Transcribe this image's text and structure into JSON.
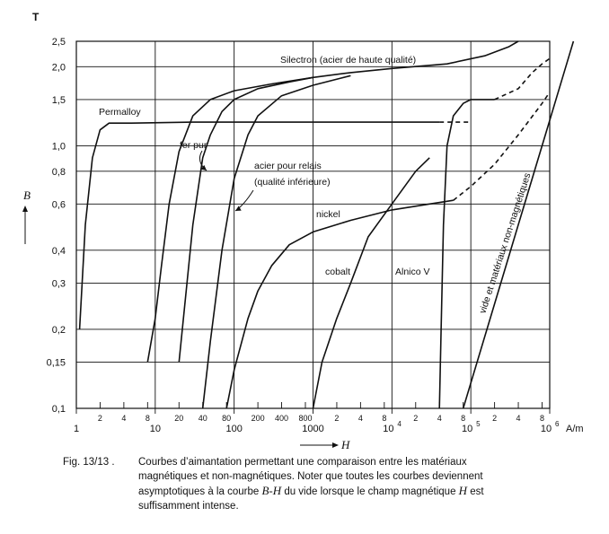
{
  "chart_data": {
    "type": "line",
    "title": "",
    "xlabel": "H",
    "x_unit": "A/m",
    "ylabel": "B",
    "y_unit": "T",
    "x_scale": "log",
    "y_scale": "log",
    "xlim": [
      1,
      1000000
    ],
    "ylim": [
      0.1,
      2.5
    ],
    "grid": true,
    "y_ticks": [
      0.1,
      0.15,
      0.2,
      0.3,
      0.4,
      0.6,
      0.8,
      1.0,
      1.5,
      2.0,
      2.5
    ],
    "y_tick_labels": [
      "0,1",
      "0,15",
      "0,2",
      "0,3",
      "0,4",
      "0,6",
      "0,8",
      "1,0",
      "1,5",
      "2,0",
      "2,5"
    ],
    "x_major_ticks": [
      1,
      10,
      100,
      1000,
      10000,
      100000,
      1000000
    ],
    "x_major_labels": [
      "1",
      "10",
      "100",
      "1000",
      "10",
      "10",
      "10"
    ],
    "x_major_exponents": [
      "",
      "",
      "",
      "",
      "4",
      "5",
      "6"
    ],
    "x_minor_ticks": [
      2,
      4,
      8,
      20,
      40,
      80,
      200,
      400,
      800,
      2000,
      4000,
      8000,
      20000,
      40000,
      80000,
      200000,
      400000,
      800000
    ],
    "x_minor_labels": [
      "2",
      "4",
      "8",
      "20",
      "40",
      "80",
      "200",
      "400",
      "800",
      "2",
      "4",
      "8",
      "2",
      "4",
      "8",
      "2",
      "4",
      "8"
    ],
    "series": [
      {
        "name": "Permalloy",
        "points": [
          [
            1.1,
            0.2
          ],
          [
            1.3,
            0.5
          ],
          [
            1.6,
            0.9
          ],
          [
            2.0,
            1.15
          ],
          [
            2.6,
            1.22
          ],
          [
            5,
            1.22
          ],
          [
            30,
            1.23
          ],
          [
            200,
            1.23
          ],
          [
            5000,
            1.23
          ],
          [
            40000,
            1.23
          ]
        ]
      },
      {
        "name": "Permalloy (tirets)",
        "dashed": true,
        "points": [
          [
            40000,
            1.23
          ],
          [
            100000,
            1.23
          ]
        ]
      },
      {
        "name": "fer pur",
        "points": [
          [
            8,
            0.15
          ],
          [
            10,
            0.22
          ],
          [
            12,
            0.35
          ],
          [
            15,
            0.6
          ],
          [
            20,
            0.95
          ],
          [
            30,
            1.3
          ],
          [
            50,
            1.5
          ],
          [
            100,
            1.62
          ],
          [
            300,
            1.72
          ],
          [
            1000,
            1.82
          ]
        ]
      },
      {
        "name": "Silectron (acier de haute qualité)",
        "points": [
          [
            20,
            0.15
          ],
          [
            30,
            0.5
          ],
          [
            40,
            0.9
          ],
          [
            50,
            1.1
          ],
          [
            70,
            1.35
          ],
          [
            100,
            1.5
          ],
          [
            200,
            1.65
          ],
          [
            500,
            1.75
          ],
          [
            1000,
            1.82
          ],
          [
            3000,
            1.9
          ],
          [
            10000,
            1.97
          ],
          [
            50000,
            2.05
          ],
          [
            150000,
            2.2
          ],
          [
            300000,
            2.38
          ],
          [
            400000,
            2.5
          ]
        ]
      },
      {
        "name": "acier pour relais (qualité inférieure)",
        "points": [
          [
            40,
            0.1
          ],
          [
            50,
            0.18
          ],
          [
            70,
            0.4
          ],
          [
            100,
            0.75
          ],
          [
            150,
            1.1
          ],
          [
            200,
            1.3
          ],
          [
            400,
            1.55
          ],
          [
            1000,
            1.7
          ],
          [
            3000,
            1.85
          ]
        ]
      },
      {
        "name": "nickel",
        "points": [
          [
            80,
            0.1
          ],
          [
            100,
            0.14
          ],
          [
            150,
            0.22
          ],
          [
            200,
            0.28
          ],
          [
            300,
            0.35
          ],
          [
            500,
            0.42
          ],
          [
            1000,
            0.47
          ],
          [
            3000,
            0.52
          ],
          [
            10000,
            0.57
          ],
          [
            30000,
            0.6
          ],
          [
            60000,
            0.62
          ]
        ]
      },
      {
        "name": "nickel (tirets)",
        "dashed": true,
        "points": [
          [
            60000,
            0.62
          ],
          [
            100000,
            0.7
          ],
          [
            200000,
            0.85
          ],
          [
            400000,
            1.1
          ],
          [
            800000,
            1.45
          ],
          [
            1000000,
            1.6
          ]
        ]
      },
      {
        "name": "cobalt",
        "points": [
          [
            1000,
            0.1
          ],
          [
            1300,
            0.15
          ],
          [
            2000,
            0.22
          ],
          [
            3000,
            0.3
          ],
          [
            5000,
            0.45
          ],
          [
            10000,
            0.6
          ],
          [
            20000,
            0.8
          ],
          [
            30000,
            0.9
          ]
        ]
      },
      {
        "name": "Alnico V",
        "points": [
          [
            40000,
            0.1
          ],
          [
            42000,
            0.2
          ],
          [
            45000,
            0.5
          ],
          [
            50000,
            1.0
          ],
          [
            60000,
            1.3
          ],
          [
            80000,
            1.45
          ],
          [
            100000,
            1.5
          ],
          [
            200000,
            1.5
          ]
        ]
      },
      {
        "name": "Alnico V (tirets)",
        "dashed": true,
        "points": [
          [
            200000,
            1.5
          ],
          [
            400000,
            1.65
          ],
          [
            600000,
            1.9
          ],
          [
            800000,
            2.05
          ],
          [
            1000000,
            2.15
          ]
        ]
      },
      {
        "name": "vide et matériaux non-magnétiques",
        "points": [
          [
            80000,
            0.1
          ],
          [
            200000,
            0.25
          ],
          [
            400000,
            0.5
          ],
          [
            800000,
            1.0
          ],
          [
            1000000,
            1.25
          ],
          [
            2000000,
            2.5
          ]
        ]
      }
    ]
  },
  "figure": {
    "number": "Fig. 13/13 .",
    "caption_line1": "Courbes d’aimantation permettant une comparaison entre les matériaux",
    "caption_line2": "magnétiques et non-magnétiques. Noter que toutes les courbes deviennent",
    "caption_line3_a": "asymptotiques à la courbe ",
    "caption_line3_i": "B-H",
    "caption_line3_b": " du vide lorsque le champ magnétique ",
    "caption_line3_i2": "H",
    "caption_line3_c": " est",
    "caption_line4": "suffisamment intense."
  }
}
